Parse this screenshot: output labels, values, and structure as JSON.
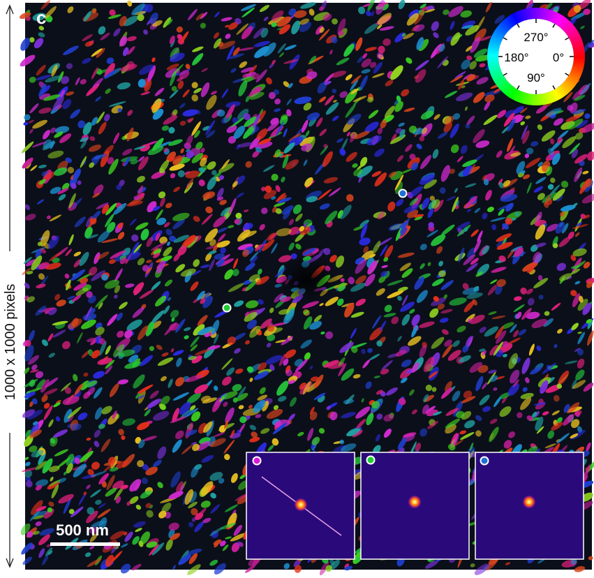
{
  "panel_label": "c",
  "dimension_label": "1000 x 1000 pixels",
  "scale_bar_label": "500 nm",
  "color_wheel": {
    "labels": {
      "top": "270°",
      "left": "180°",
      "right": "0°",
      "bottom": "90°"
    }
  },
  "markers": [
    {
      "name": "marker-blue",
      "color": "#1f6fd6"
    },
    {
      "name": "marker-green",
      "color": "#22cc33"
    }
  ],
  "insets": [
    {
      "name": "inset-magenta",
      "marker_color": "#d81bd8",
      "has_line": true
    },
    {
      "name": "inset-green",
      "marker_color": "#22cc33",
      "has_line": false
    },
    {
      "name": "inset-blue",
      "marker_color": "#1f6fd6",
      "has_line": false
    }
  ],
  "colors": {
    "inset_background": "#2a0a7a",
    "spot_core": "#fff6b0",
    "spot_mid": "#ff7a00",
    "spot_outer": "#c0208a",
    "map_background": "#0b0f1a"
  }
}
